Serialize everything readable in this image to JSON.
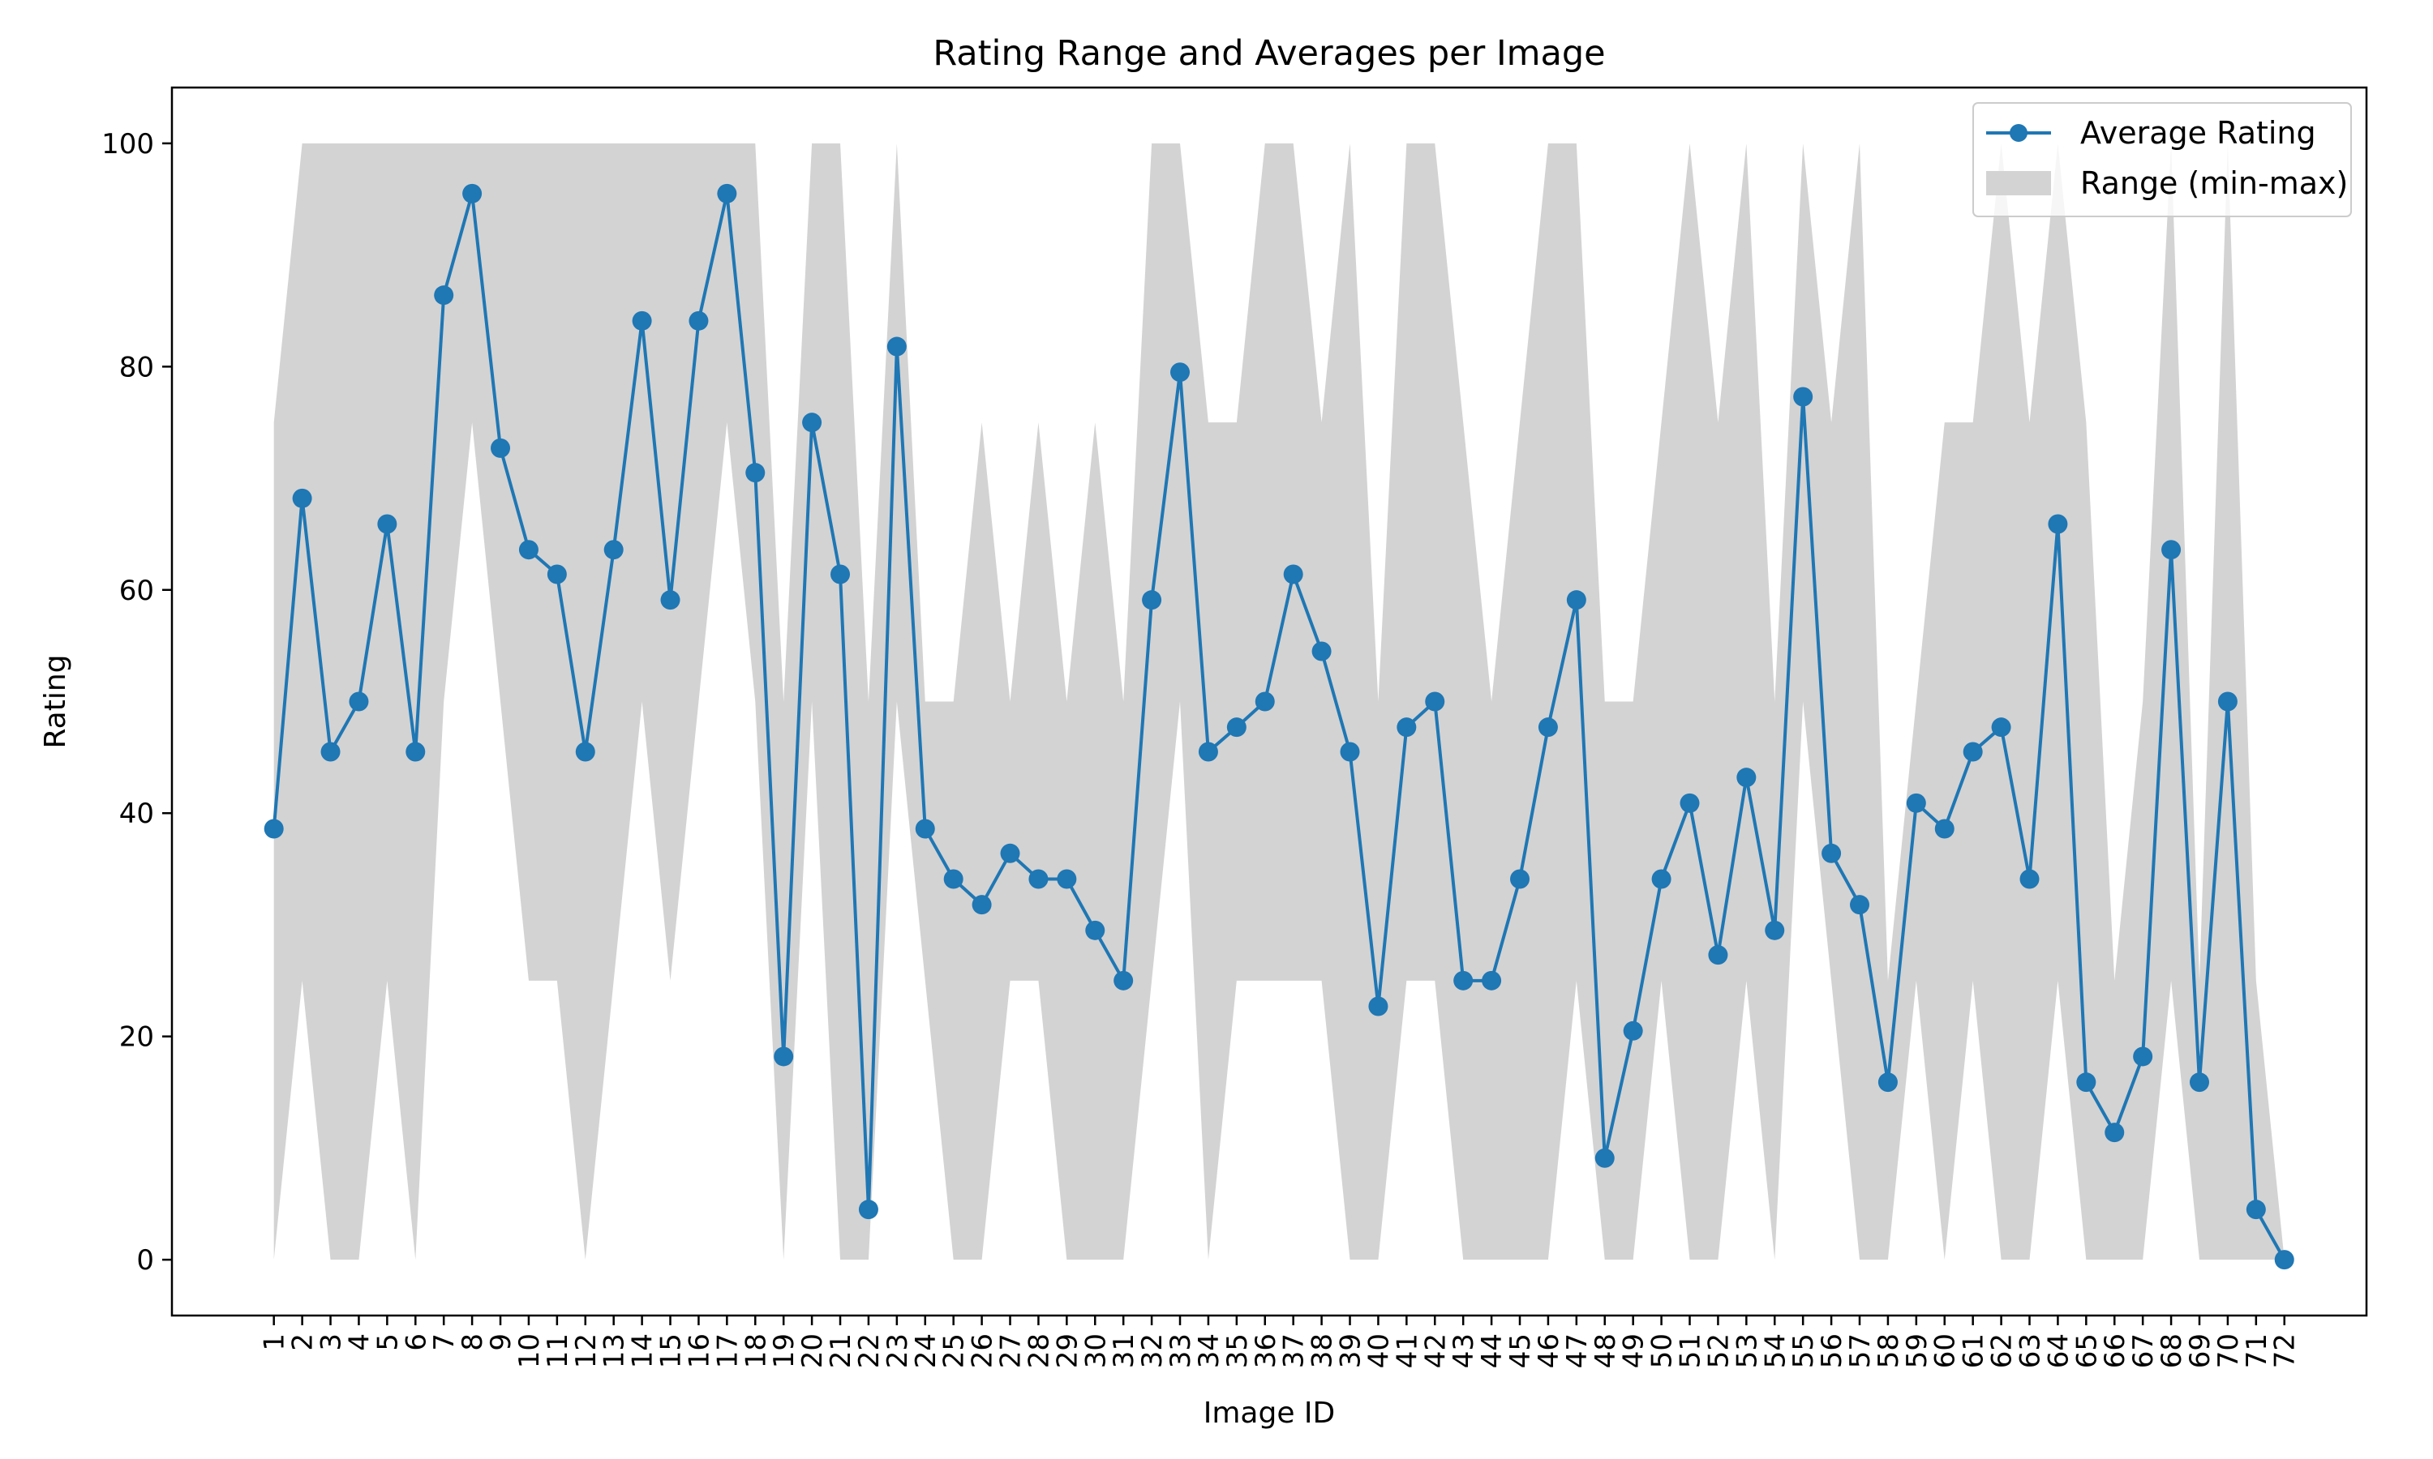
{
  "chart_data": {
    "type": "line",
    "title": "Rating Range and Averages per Image",
    "xlabel": "Image ID",
    "ylabel": "Rating",
    "ylim": [
      -5,
      105
    ],
    "yticks": [
      0,
      20,
      40,
      60,
      80,
      100
    ],
    "grid": false,
    "legend_position": "top-right",
    "colors": {
      "line": "#1f77b4",
      "range": "#d3d3d3"
    },
    "x": [
      1,
      2,
      3,
      4,
      5,
      6,
      7,
      8,
      9,
      10,
      11,
      12,
      13,
      14,
      15,
      16,
      17,
      18,
      19,
      20,
      21,
      22,
      23,
      24,
      25,
      26,
      27,
      28,
      29,
      30,
      31,
      32,
      33,
      34,
      35,
      36,
      37,
      38,
      39,
      40,
      41,
      42,
      43,
      44,
      45,
      46,
      47,
      48,
      49,
      50,
      51,
      52,
      53,
      54,
      55,
      56,
      57,
      58,
      59,
      60,
      61,
      62,
      63,
      64,
      65,
      66,
      67,
      68,
      69,
      70,
      71,
      72
    ],
    "series": [
      {
        "name": "Average Rating",
        "kind": "line-marker",
        "values": [
          38.6,
          68.2,
          45.5,
          50,
          65.9,
          45.5,
          86.4,
          95.5,
          72.7,
          63.6,
          61.4,
          45.5,
          63.6,
          84.1,
          59.1,
          84.1,
          95.5,
          70.5,
          18.2,
          75,
          61.4,
          4.5,
          81.8,
          38.6,
          34.1,
          31.8,
          36.4,
          34.1,
          34.1,
          29.5,
          25,
          59.1,
          79.5,
          45.5,
          47.7,
          50,
          61.4,
          54.5,
          45.5,
          22.7,
          47.7,
          50,
          25,
          25,
          34.1,
          47.7,
          59.1,
          9.1,
          20.5,
          34.1,
          40.9,
          27.3,
          43.2,
          29.5,
          77.3,
          36.4,
          31.8,
          15.9,
          40.9,
          38.6,
          45.5,
          47.7,
          34.1,
          65.9,
          15.9,
          11.4,
          18.2,
          63.6,
          15.9,
          50,
          4.5,
          0
        ]
      },
      {
        "name": "Range (min-max)",
        "kind": "band",
        "min": [
          0,
          25,
          0,
          0,
          25,
          0,
          50,
          75,
          50,
          25,
          25,
          0,
          25,
          50,
          25,
          50,
          75,
          50,
          0,
          50,
          0,
          0,
          50,
          25,
          0,
          0,
          25,
          25,
          0,
          0,
          0,
          25,
          50,
          0,
          25,
          25,
          25,
          25,
          0,
          0,
          25,
          25,
          0,
          0,
          0,
          0,
          25,
          0,
          0,
          25,
          0,
          0,
          25,
          0,
          50,
          25,
          0,
          0,
          25,
          0,
          25,
          0,
          0,
          25,
          0,
          0,
          0,
          25,
          0,
          0,
          0,
          0
        ],
        "max": [
          75,
          100,
          100,
          100,
          100,
          100,
          100,
          100,
          100,
          100,
          100,
          100,
          100,
          100,
          100,
          100,
          100,
          100,
          50,
          100,
          100,
          50,
          100,
          50,
          50,
          75,
          50,
          75,
          50,
          75,
          50,
          100,
          100,
          75,
          75,
          100,
          100,
          75,
          100,
          50,
          100,
          100,
          75,
          50,
          75,
          100,
          100,
          50,
          50,
          75,
          100,
          75,
          100,
          50,
          100,
          75,
          100,
          25,
          50,
          75,
          75,
          100,
          75,
          100,
          75,
          25,
          50,
          100,
          25,
          100,
          25,
          0
        ]
      }
    ]
  }
}
